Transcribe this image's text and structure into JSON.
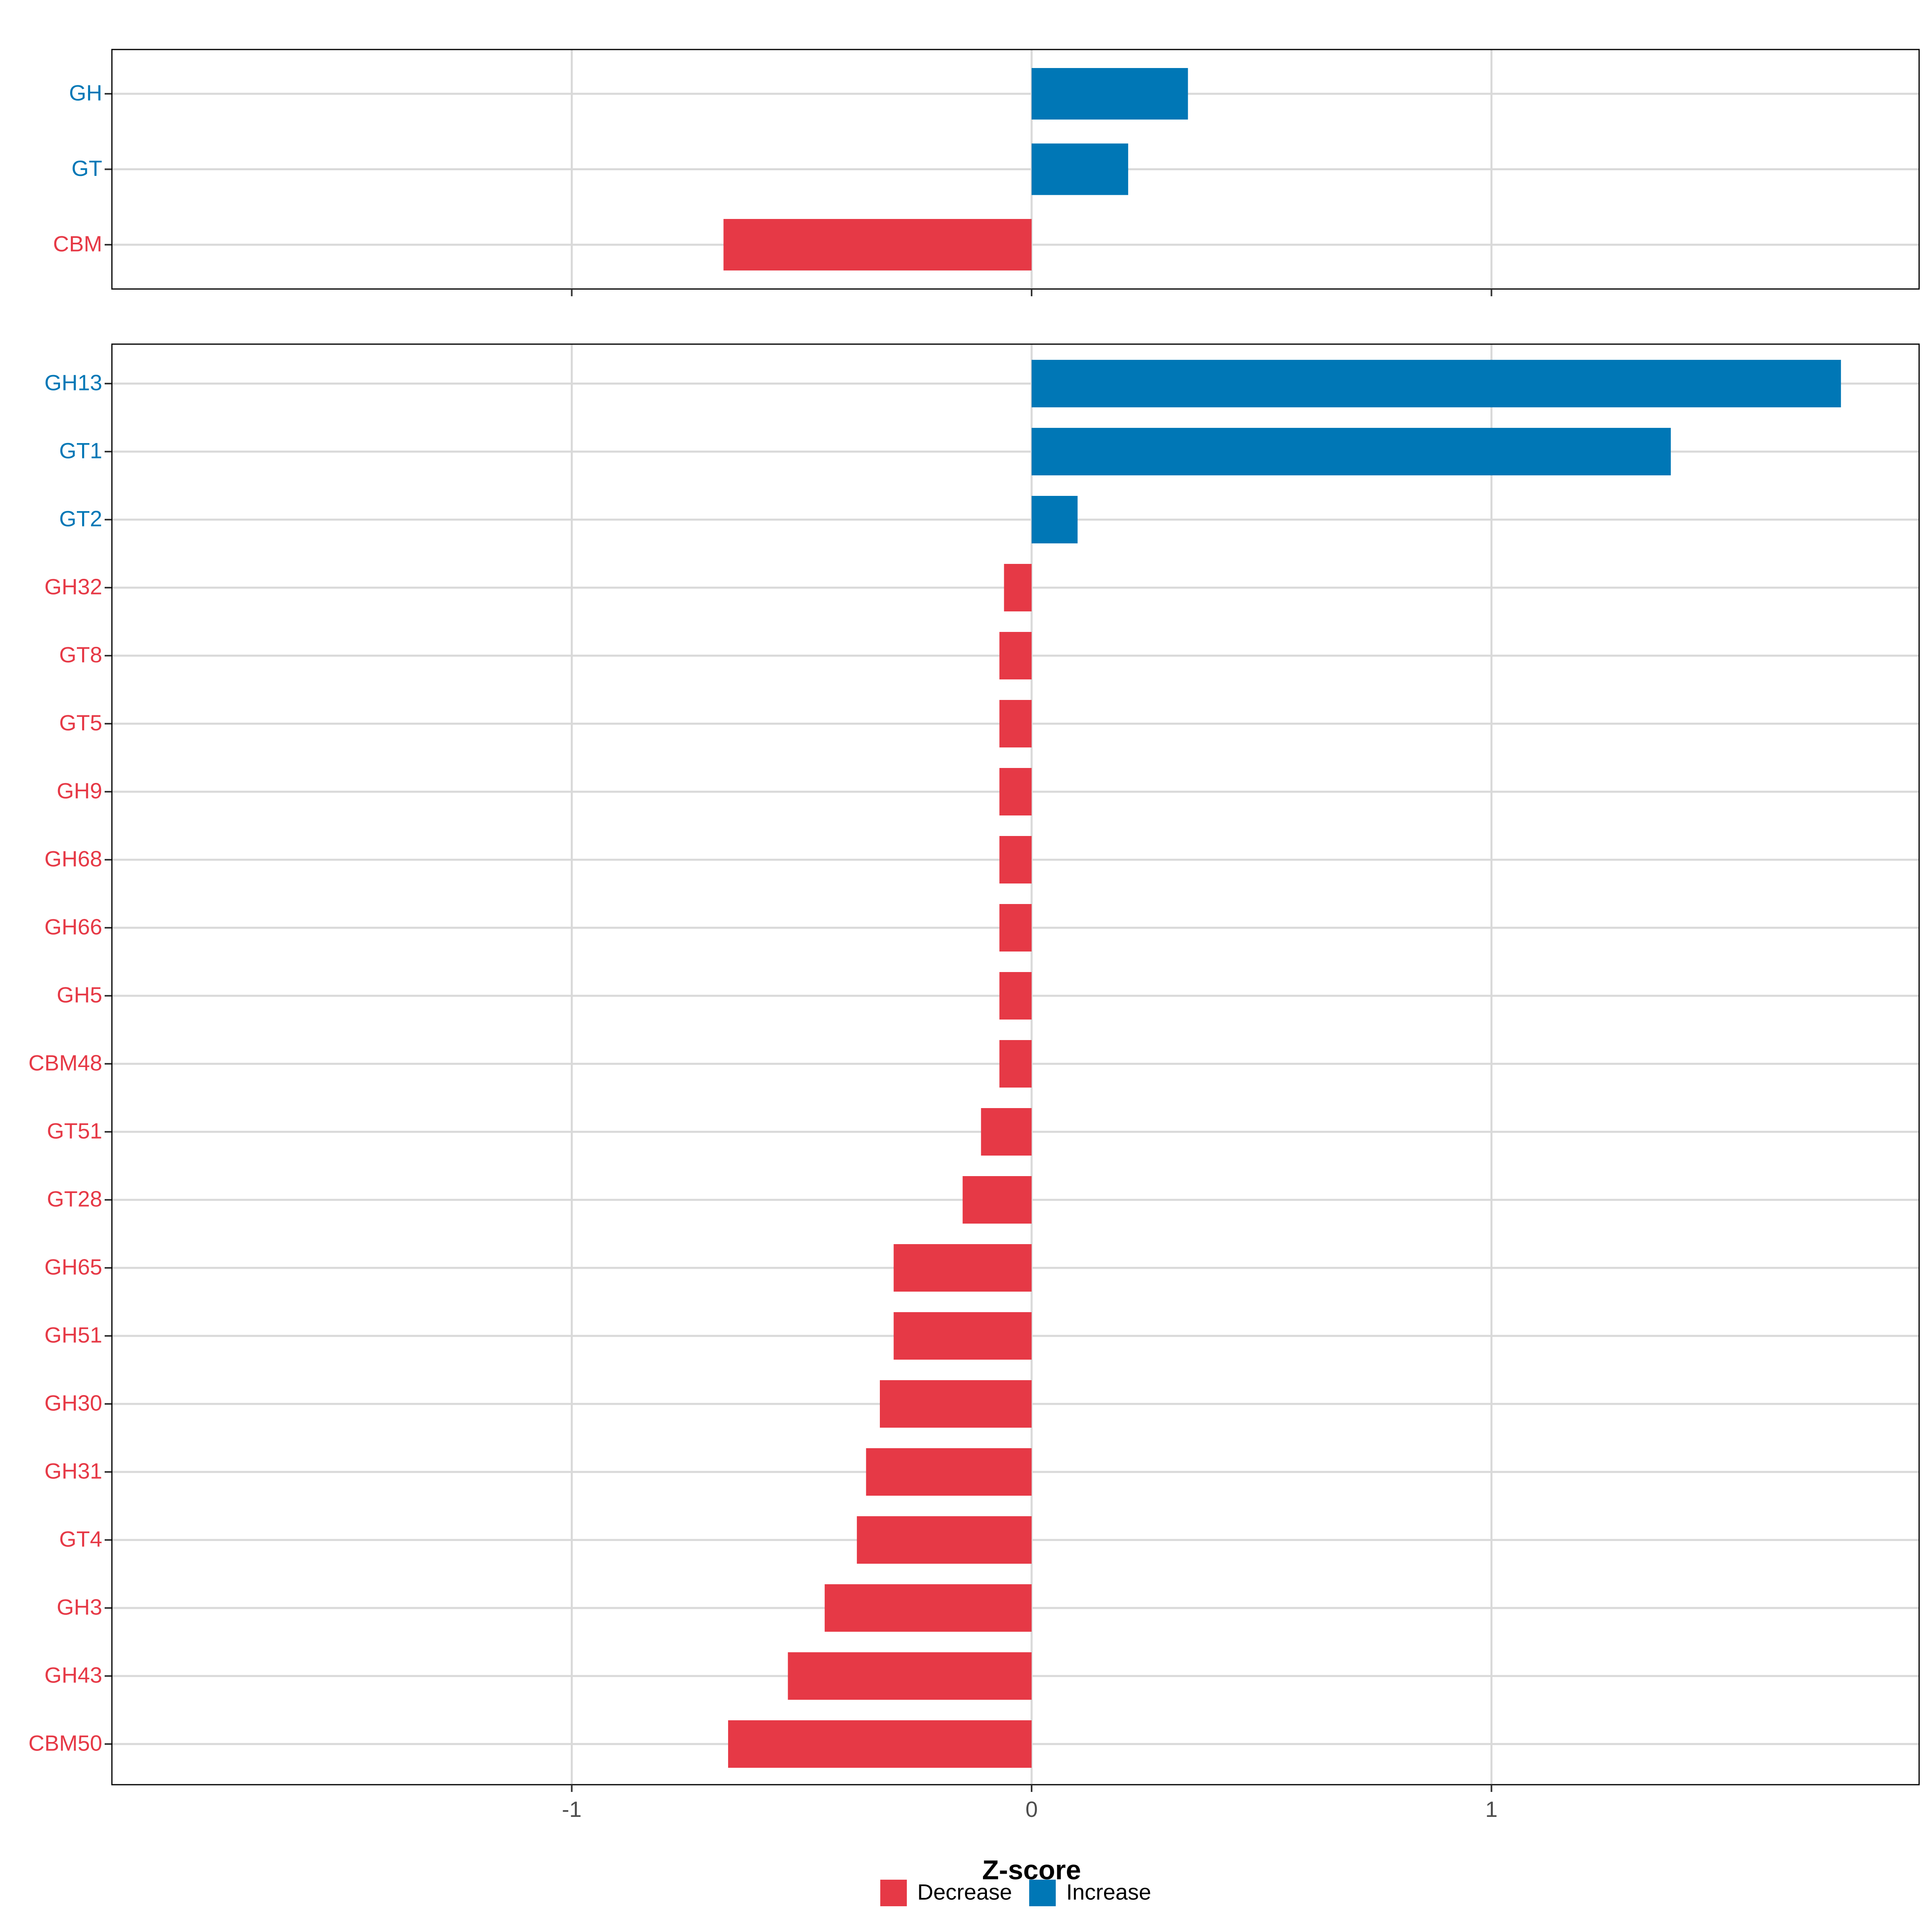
{
  "colors": {
    "Decrease": "#E63946",
    "Increase": "#0077B6"
  },
  "chart_data": {
    "type": "bar",
    "orientation": "horizontal",
    "xlabel": "Z-score",
    "xlim": [
      -2.0,
      1.93
    ],
    "xticks": [
      -1,
      0,
      1
    ],
    "xtick_labels": [
      "-1",
      "0",
      "1"
    ],
    "grid": true,
    "legend_position": "bottom",
    "legend": [
      {
        "label": "Decrease",
        "color": "#E63946"
      },
      {
        "label": "Increase",
        "color": "#0077B6"
      }
    ],
    "panels": [
      {
        "name": "top",
        "categories": [
          "GH",
          "GT",
          "CBM"
        ],
        "values": [
          0.34,
          0.21,
          -0.67
        ],
        "groups": [
          "Increase",
          "Increase",
          "Decrease"
        ]
      },
      {
        "name": "bottom",
        "categories": [
          "GH13",
          "GT1",
          "GT2",
          "GH32",
          "GT8",
          "GT5",
          "GH9",
          "GH68",
          "GH66",
          "GH5",
          "CBM48",
          "GT51",
          "GT28",
          "GH65",
          "GH51",
          "GH30",
          "GH31",
          "GT4",
          "GH3",
          "GH43",
          "CBM50"
        ],
        "values": [
          1.76,
          1.39,
          0.1,
          -0.06,
          -0.07,
          -0.07,
          -0.07,
          -0.07,
          -0.07,
          -0.07,
          -0.07,
          -0.11,
          -0.15,
          -0.3,
          -0.3,
          -0.33,
          -0.36,
          -0.38,
          -0.45,
          -0.53,
          -0.66
        ],
        "groups": [
          "Increase",
          "Increase",
          "Increase",
          "Decrease",
          "Decrease",
          "Decrease",
          "Decrease",
          "Decrease",
          "Decrease",
          "Decrease",
          "Decrease",
          "Decrease",
          "Decrease",
          "Decrease",
          "Decrease",
          "Decrease",
          "Decrease",
          "Decrease",
          "Decrease",
          "Decrease",
          "Decrease"
        ]
      }
    ]
  }
}
